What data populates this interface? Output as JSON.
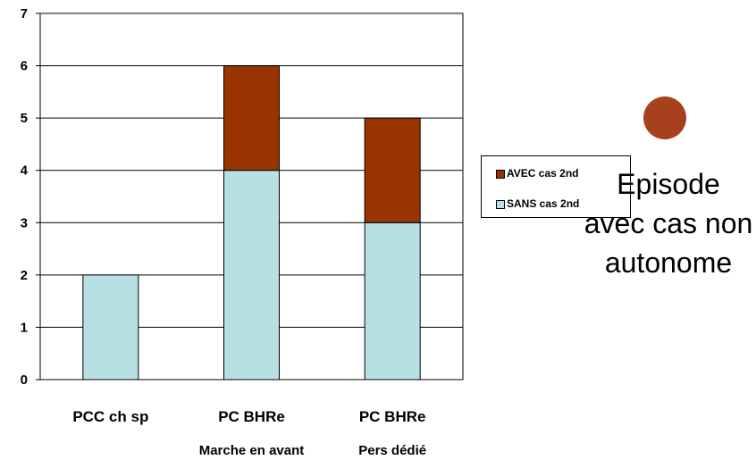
{
  "colors": {
    "avec": "#993300",
    "sans": "#b7e0e4",
    "bullet": "#a7401c"
  },
  "legend": {
    "items": [
      {
        "label": "AVEC cas 2nd",
        "color": "#993300"
      },
      {
        "label": "SANS cas 2nd",
        "color": "#b7e0e4"
      }
    ],
    "placement": "right"
  },
  "note": {
    "text": "Episode avec cas non autonome",
    "bullet_icon": "circle-bullet-icon"
  },
  "chart_data": {
    "type": "bar",
    "stacked": true,
    "categories": [
      "PCC ch sp",
      "PC BHRe",
      "PC BHRe"
    ],
    "subcategories": [
      "",
      "Marche en avant",
      "Pers dédié"
    ],
    "series": [
      {
        "name": "SANS cas 2nd",
        "values": [
          2,
          4,
          3
        ]
      },
      {
        "name": "AVEC cas 2nd",
        "values": [
          0,
          2,
          2
        ]
      }
    ],
    "title": "",
    "xlabel": "",
    "ylabel": "",
    "ylim": [
      0,
      7
    ],
    "yticks": [
      "0",
      "1",
      "2",
      "3",
      "4",
      "5",
      "6",
      "7"
    ],
    "grid": true
  }
}
